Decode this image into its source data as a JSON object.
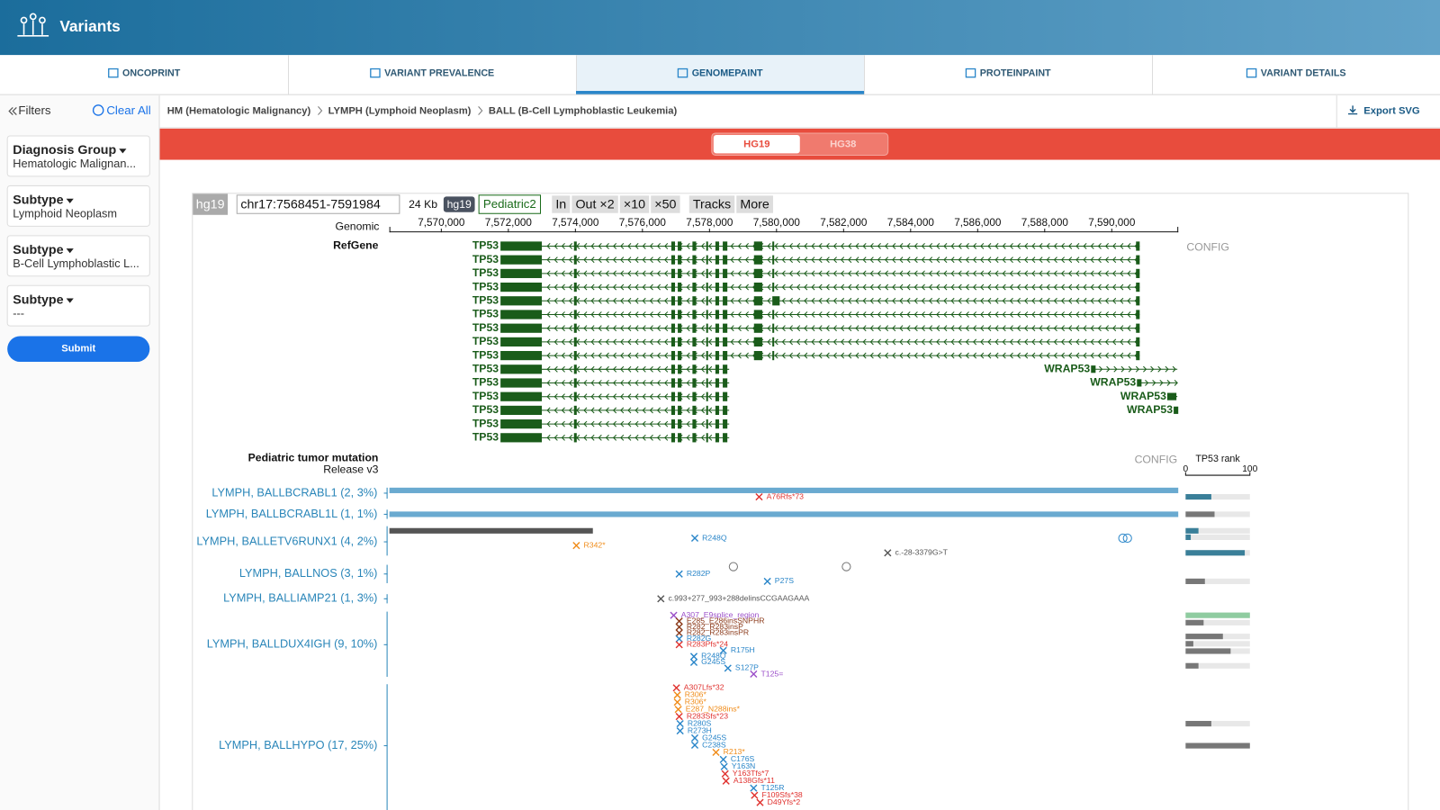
{
  "header": {
    "title": "Variants"
  },
  "tabs": [
    "ONCOPRINT",
    "VARIANT PREVALENCE",
    "GENOMEPAINT",
    "PROTEINPAINT",
    "VARIANT DETAILS"
  ],
  "active_tab": 2,
  "sidebar": {
    "filters": "Filters",
    "clear_all": "Clear All",
    "groups": [
      {
        "label": "Diagnosis Group",
        "value": "Hematologic Malignan..."
      },
      {
        "label": "Subtype",
        "value": "Lymphoid Neoplasm"
      },
      {
        "label": "Subtype",
        "value": "B-Cell Lymphoblastic L..."
      },
      {
        "label": "Subtype",
        "value": "---"
      }
    ],
    "submit": "Submit"
  },
  "breadcrumb": [
    "HM (Hematologic Malignancy)",
    "LYMPH (Lymphoid Neoplasm)",
    "BALL (B-Cell Lymphoblastic Leukemia)"
  ],
  "export": "Export SVG",
  "genome_buttons": [
    "HG19",
    "HG38"
  ],
  "active_genome": 0,
  "browser": {
    "toolbar": {
      "genome": "hg19",
      "position": "chr17:7568451-7591984",
      "span": "24 Kb",
      "build": "hg19",
      "dataset": "Pediatric2",
      "buttons": [
        "In",
        "Out ×2",
        "×10",
        "×50",
        "Tracks",
        "More"
      ]
    },
    "ruler": {
      "label": "Genomic",
      "xlim": [
        7568451,
        7591984
      ],
      "ticks": [
        {
          "value": 7570000,
          "label": "7,570,000"
        },
        {
          "value": 7572000,
          "label": "7,572,000"
        },
        {
          "value": 7574000,
          "label": "7,574,000"
        },
        {
          "value": 7576000,
          "label": "7,576,000"
        },
        {
          "value": 7578000,
          "label": "7,578,000"
        },
        {
          "value": 7580000,
          "label": "7,580,000"
        },
        {
          "value": 7582000,
          "label": "7,582,000"
        },
        {
          "value": 7584000,
          "label": "7,584,000"
        },
        {
          "value": 7586000,
          "label": "7,586,000"
        },
        {
          "value": 7588000,
          "label": "7,588,000"
        },
        {
          "value": 7590000,
          "label": "7,590,000"
        }
      ]
    },
    "refgene": {
      "label": "RefGene",
      "config": "CONFIG",
      "tp53": [
        "TP53",
        "TP53",
        "TP53",
        "TP53",
        "TP53",
        "TP53",
        "TP53",
        "TP53",
        "TP53",
        "TP53",
        "TP53",
        "TP53",
        "TP53",
        "TP53",
        "TP53"
      ],
      "wrap53": [
        "WRAP53",
        "WRAP53",
        "WRAP53",
        "WRAP53"
      ]
    },
    "mutation_track": {
      "title": "Pediatric tumor mutation",
      "subtitle": "Release v3",
      "config": "CONFIG",
      "rank_title": "TP53 rank",
      "rank_lim": [
        0,
        100
      ],
      "rank_ticks": [
        0,
        100
      ],
      "rows": [
        {
          "label": "LYMPH, BALLBCRABL1 (2, 3%)",
          "segment": [
            7568451,
            7591984
          ],
          "segment_color": "#6aaad0",
          "mutations": [
            {
              "label": "A76Rfs*73",
              "pos": 7579480,
              "color": "#e0322f"
            }
          ],
          "rank": [
            {
              "value": 40,
              "color": "#3a7f99"
            }
          ]
        },
        {
          "label": "LYMPH, BALLBCRABL1L (1, 1%)",
          "segment": [
            7568451,
            7591984
          ],
          "segment_color": "#6aaad0",
          "mutations": [],
          "rank": [
            {
              "value": 45,
              "color": "#777777"
            }
          ]
        },
        {
          "label": "LYMPH, BALLETV6RUNX1 (4, 2%)",
          "segment": [
            7568451,
            7574521
          ],
          "segment_color": "#555555",
          "mutations": [
            {
              "label": "R248Q",
              "pos": 7577562,
              "color": "#2a86c9"
            },
            {
              "label": "R342*",
              "pos": 7574028,
              "color": "#f08c1a"
            },
            {
              "label": "c.-28-3379G>T",
              "pos": 7583316,
              "color": "#555555"
            }
          ],
          "sv": [
            7590331
          ],
          "rank": [
            {
              "value": 20,
              "color": "#3a7f99"
            },
            {
              "value": 8,
              "color": "#3a7f99"
            },
            {
              "value": 92,
              "color": "#3a7f99"
            }
          ]
        },
        {
          "label": "LYMPH, BALLNOS (3, 1%)",
          "mutations": [
            {
              "label": "R282P",
              "pos": 7577097,
              "color": "#2a86c9"
            },
            {
              "label": "P27S",
              "pos": 7579727,
              "color": "#2a86c9"
            }
          ],
          "sv": [
            7578713,
            7582083
          ],
          "rank": [
            {
              "value": 30,
              "color": "#777777"
            }
          ]
        },
        {
          "label": "LYMPH, BALLIAMP21 (1, 3%)",
          "mutations": [
            {
              "label": "c.993+277_993+288delinsCCGAAGAAA",
              "pos": 7576549,
              "color": "#555555"
            }
          ],
          "rank": []
        },
        {
          "label": "LYMPH, BALLDUX4IGH (9, 10%)",
          "mutations": [
            {
              "label": "A307_E9splice_region",
              "pos": 7576932,
              "color": "#9b4fc9"
            },
            {
              "label": "E285_E286insSNPHR",
              "pos": 7577097,
              "color": "#8b3a1a"
            },
            {
              "label": "R282_R283insP",
              "pos": 7577097,
              "color": "#8b3a1a"
            },
            {
              "label": "R282_R283insPR",
              "pos": 7577097,
              "color": "#8b3a1a"
            },
            {
              "label": "R282G",
              "pos": 7577097,
              "color": "#2a86c9"
            },
            {
              "label": "R283Pfs*24",
              "pos": 7577097,
              "color": "#e0322f"
            },
            {
              "label": "R175H",
              "pos": 7578412,
              "color": "#2a86c9"
            },
            {
              "label": "R248Q",
              "pos": 7577535,
              "color": "#2a86c9"
            },
            {
              "label": "G245S",
              "pos": 7577535,
              "color": "#2a86c9"
            },
            {
              "label": "S127P",
              "pos": 7578549,
              "color": "#2a86c9"
            },
            {
              "label": "T125=",
              "pos": 7579316,
              "color": "#9b4fc9"
            }
          ],
          "rank": [
            {
              "value": 100,
              "color": "#8fcca0"
            },
            {
              "value": 28,
              "color": "#777777"
            },
            {
              "value": 58,
              "color": "#777777"
            },
            {
              "value": 12,
              "color": "#777777"
            },
            {
              "value": 70,
              "color": "#777777"
            },
            {
              "value": 20,
              "color": "#777777"
            }
          ]
        },
        {
          "label": "LYMPH, BALLHYPO (17, 25%)",
          "mutations": [
            {
              "label": "A307Lfs*32",
              "pos": 7577014,
              "color": "#e0322f"
            },
            {
              "label": "R306*",
              "pos": 7577042,
              "color": "#f08c1a"
            },
            {
              "label": "R306*",
              "pos": 7577042,
              "color": "#f08c1a"
            },
            {
              "label": "E287_N288ins*",
              "pos": 7577069,
              "color": "#f08c1a"
            },
            {
              "label": "R283Sfs*23",
              "pos": 7577097,
              "color": "#e0322f"
            },
            {
              "label": "R280S",
              "pos": 7577124,
              "color": "#2a86c9"
            },
            {
              "label": "R273H",
              "pos": 7577124,
              "color": "#2a86c9"
            },
            {
              "label": "G245S",
              "pos": 7577562,
              "color": "#2a86c9"
            },
            {
              "label": "C238S",
              "pos": 7577562,
              "color": "#2a86c9"
            },
            {
              "label": "R213*",
              "pos": 7578193,
              "color": "#f08c1a"
            },
            {
              "label": "C176S",
              "pos": 7578412,
              "color": "#2a86c9"
            },
            {
              "label": "Y163N",
              "pos": 7578439,
              "color": "#2a86c9"
            },
            {
              "label": "Y163Tfs*7",
              "pos": 7578467,
              "color": "#e0322f"
            },
            {
              "label": "A138Gfs*11",
              "pos": 7578494,
              "color": "#e0322f"
            },
            {
              "label": "T125R",
              "pos": 7579316,
              "color": "#2a86c9"
            },
            {
              "label": "F109Sfs*38",
              "pos": 7579343,
              "color": "#e0322f"
            },
            {
              "label": "D49Yfs*2",
              "pos": 7579508,
              "color": "#e0322f"
            }
          ],
          "rank": [
            {
              "value": 40,
              "color": "#777777"
            },
            {
              "value": 100,
              "color": "#777777"
            }
          ]
        }
      ]
    }
  }
}
